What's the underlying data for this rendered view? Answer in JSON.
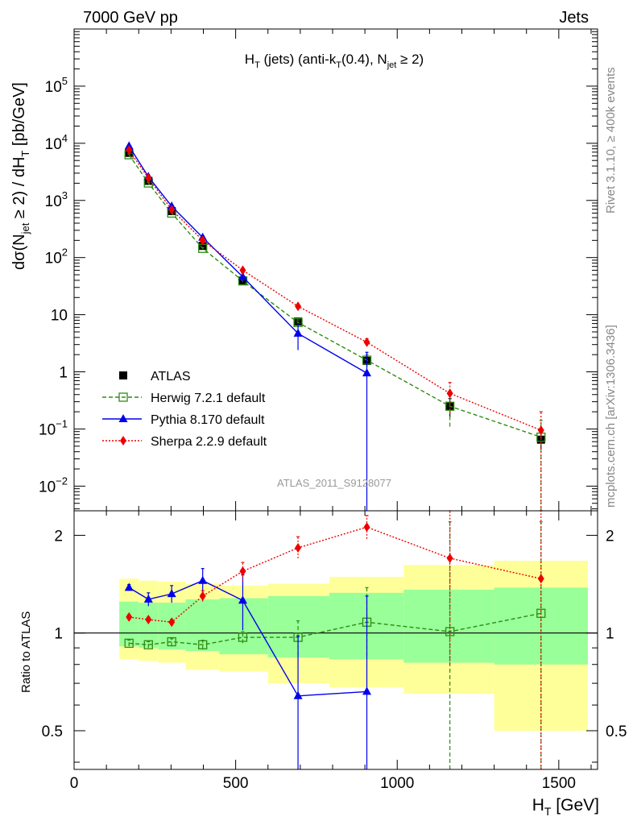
{
  "header": {
    "left": "7000 GeV pp",
    "right": "Jets"
  },
  "side": {
    "rivet": "Rivet 3.1.10, ≥ 400k events",
    "mcplots": "mcplots.cern.ch [arXiv:1306.3436]"
  },
  "watermark": "ATLAS_2011_S9128077",
  "colors": {
    "atlas": "#000000",
    "herwig": "#2e8b12",
    "pythia": "#0000ee",
    "sherpa": "#ee0000",
    "band_outer": "#ffff99",
    "band_inner": "#99ff99"
  },
  "chart_data": [
    {
      "type": "scatter",
      "panel": "main",
      "title": "H_T (jets) (anti-k_T(0.4), N_jet ≥ 2)",
      "xlabel": "H_T [GeV]",
      "ylabel": "dσ(N_jet ≥ 2) / dH_T [pb/GeV]",
      "x_range": [
        0,
        1620
      ],
      "y_range": [
        0.0037,
        1000000
      ],
      "y_scale": "log",
      "y_ticks": [
        {
          "v": 0.01,
          "base": "10",
          "exp": "−2"
        },
        {
          "v": 0.1,
          "base": "10",
          "exp": "−1"
        },
        {
          "v": 1,
          "base": "1",
          "exp": ""
        },
        {
          "v": 10,
          "base": "10",
          "exp": ""
        },
        {
          "v": 100,
          "base": "10",
          "exp": "2"
        },
        {
          "v": 1000,
          "base": "10",
          "exp": "3"
        },
        {
          "v": 10000,
          "base": "10",
          "exp": "4"
        },
        {
          "v": 100000,
          "base": "10",
          "exp": "5"
        }
      ],
      "legend": [
        "ATLAS",
        "Herwig 7.2.1 default",
        "Pythia 8.170 default",
        "Sherpa 2.2.9 default"
      ],
      "legend_position": "lower-left",
      "x": [
        170,
        230,
        302,
        398,
        522,
        693,
        906,
        1163,
        1445
      ],
      "series": [
        {
          "name": "ATLAS",
          "values": [
            6800,
            2200,
            650,
            160,
            40,
            7.6,
            1.55,
            0.25,
            0.065
          ],
          "err_lo": [
            6700,
            2170,
            640,
            157,
            39,
            6.8,
            1.25,
            0.16,
            0.045
          ],
          "err_hi": [
            6900,
            2230,
            660,
            163,
            41,
            8.4,
            1.85,
            0.34,
            0.085
          ]
        },
        {
          "name": "Herwig 7.2.1 default",
          "values": [
            6300,
            2020,
            600,
            145,
            39,
            7.3,
            1.6,
            0.25,
            0.072
          ],
          "err_lo": [
            6100,
            1970,
            580,
            140,
            37,
            6.5,
            1.2,
            0.11,
            0.001
          ],
          "err_hi": [
            6500,
            2070,
            620,
            150,
            41,
            8.1,
            2.0,
            0.39,
            0.14
          ]
        },
        {
          "name": "Pythia 8.170 default",
          "values": [
            8900,
            2600,
            790,
            225,
            46,
            4.7,
            0.95,
            null,
            null
          ],
          "err_lo": [
            8700,
            2480,
            740,
            212,
            38,
            2.4,
            0.0001,
            null,
            null
          ],
          "err_hi": [
            9100,
            2720,
            840,
            238,
            54,
            7.0,
            2.2,
            null,
            null
          ]
        },
        {
          "name": "Sherpa 2.2.9 default",
          "values": [
            7600,
            2450,
            690,
            200,
            60,
            14,
            3.3,
            0.42,
            0.095
          ],
          "err_lo": [
            7450,
            2390,
            670,
            193,
            57,
            12.8,
            2.8,
            0.19,
            0.001
          ],
          "err_hi": [
            7750,
            2510,
            710,
            207,
            63,
            15.2,
            3.8,
            0.65,
            0.2
          ]
        }
      ]
    },
    {
      "type": "scatter",
      "panel": "ratio",
      "ylabel": "Ratio to ATLAS",
      "xlabel": "H_T [GeV]",
      "x_range": [
        0,
        1620
      ],
      "y_range": [
        0.38,
        2.38
      ],
      "y_scale": "log",
      "x_ticks": [
        0,
        500,
        1000,
        1500
      ],
      "y_ticks": [
        0.5,
        1,
        2
      ],
      "bins": [
        140,
        200,
        260,
        345,
        450,
        600,
        790,
        1020,
        1300,
        1590
      ],
      "band_outer_lo": [
        0.83,
        0.82,
        0.81,
        0.77,
        0.76,
        0.7,
        0.68,
        0.65,
        0.5
      ],
      "band_outer_hi": [
        1.47,
        1.45,
        1.44,
        1.42,
        1.4,
        1.42,
        1.49,
        1.62,
        1.67
      ],
      "band_inner_lo": [
        0.91,
        0.9,
        0.89,
        0.88,
        0.86,
        0.84,
        0.83,
        0.81,
        0.8
      ],
      "band_inner_hi": [
        1.25,
        1.24,
        1.24,
        1.27,
        1.28,
        1.3,
        1.33,
        1.36,
        1.38
      ],
      "x": [
        170,
        230,
        302,
        398,
        522,
        693,
        906,
        1163,
        1445
      ],
      "series": [
        {
          "name": "Herwig 7.2.1 default",
          "values": [
            0.93,
            0.92,
            0.94,
            0.92,
            0.97,
            0.97,
            1.08,
            1.01,
            1.15
          ],
          "err_lo": [
            0.91,
            0.9,
            0.91,
            0.89,
            0.93,
            0.85,
            0.85,
            0.38,
            0.3
          ],
          "err_hi": [
            0.95,
            0.94,
            0.96,
            0.95,
            1.01,
            1.09,
            1.38,
            2.2,
            2.2
          ]
        },
        {
          "name": "Pythia 8.170 default",
          "values": [
            1.38,
            1.27,
            1.32,
            1.45,
            1.26,
            0.64,
            0.66,
            null,
            null
          ],
          "err_lo": [
            1.35,
            1.21,
            1.24,
            1.33,
            1.02,
            0.3,
            0.3,
            null,
            null
          ],
          "err_hi": [
            1.41,
            1.33,
            1.4,
            1.58,
            1.51,
            0.98,
            1.3,
            null,
            null
          ]
        },
        {
          "name": "Sherpa 2.2.9 default",
          "values": [
            1.12,
            1.1,
            1.08,
            1.3,
            1.55,
            1.83,
            2.12,
            1.7,
            1.47
          ],
          "err_lo": [
            1.1,
            1.08,
            1.06,
            1.25,
            1.45,
            1.7,
            1.95,
            0.8,
            0.3
          ],
          "err_hi": [
            1.14,
            1.12,
            1.1,
            1.35,
            1.65,
            1.98,
            2.3,
            2.5,
            2.6
          ]
        }
      ]
    }
  ]
}
